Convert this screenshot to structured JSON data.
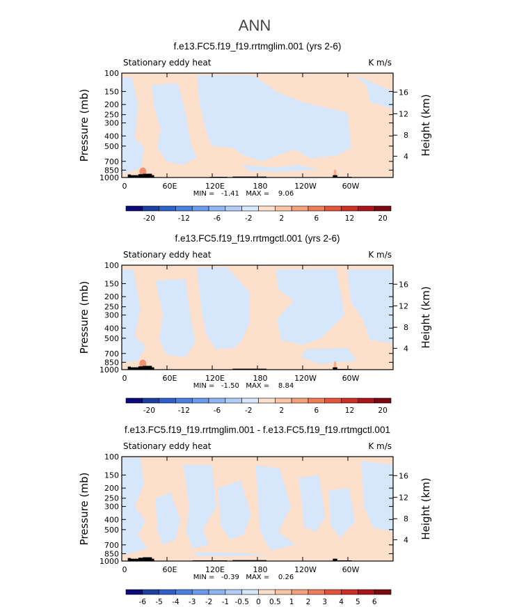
{
  "figure_title": "ANN",
  "colors": {
    "neg_light": "#d6e6fb",
    "pos_light": "#fde0cc",
    "topography": "#000000",
    "frame": "#000000"
  },
  "chart_data": [
    {
      "type": "heatmap",
      "title": "f.e13.FC5.f19_f19.rrtmglim.001 (yrs 2-6)",
      "left_label": "Stationary eddy heat",
      "right_label": "K m/s",
      "ylabel": "Pressure (mb)",
      "ylabel_right": "Height (km)",
      "y_ticks": [
        "100",
        "150",
        "200",
        "250",
        "300",
        "400",
        "500",
        "700",
        "850",
        "1000"
      ],
      "y_right_ticks": [
        "16",
        "12",
        "8",
        "4"
      ],
      "x_ticks": [
        "0",
        "60E",
        "120E",
        "180",
        "120W",
        "60W"
      ],
      "x_range": [
        0,
        360
      ],
      "y_range": [
        100,
        1000
      ],
      "stats": "MIN =   -1.41   MAX =    9.06",
      "colorbar_labels": [
        "-20",
        "-12",
        "-6",
        "-2",
        "2",
        "6",
        "12",
        "20"
      ],
      "colorbar_colors": [
        "#0a0a78",
        "#1c3fa0",
        "#2e60c8",
        "#4b7fe0",
        "#6a9bec",
        "#8fb6f2",
        "#b3cdf7",
        "#d6e6fb",
        "#fde0cc",
        "#f9c3a5",
        "#f3a07c",
        "#ec7d58",
        "#e2543b",
        "#cc2f24",
        "#a9151a",
        "#7a0a10"
      ]
    },
    {
      "type": "heatmap",
      "title": "f.e13.FC5.f19_f19.rrtmgctl.001 (yrs 2-6)",
      "left_label": "Stationary eddy heat",
      "right_label": "K m/s",
      "ylabel": "Pressure (mb)",
      "ylabel_right": "Height (km)",
      "y_ticks": [
        "100",
        "150",
        "200",
        "250",
        "300",
        "400",
        "500",
        "700",
        "850",
        "1000"
      ],
      "y_right_ticks": [
        "16",
        "12",
        "8",
        "4"
      ],
      "x_ticks": [
        "0",
        "60E",
        "120E",
        "180",
        "120W",
        "60W"
      ],
      "x_range": [
        0,
        360
      ],
      "y_range": [
        100,
        1000
      ],
      "stats": "MIN =   -1.50   MAX =    8.84",
      "colorbar_labels": [
        "-20",
        "-12",
        "-6",
        "-2",
        "2",
        "6",
        "12",
        "20"
      ],
      "colorbar_colors": [
        "#0a0a78",
        "#1c3fa0",
        "#2e60c8",
        "#4b7fe0",
        "#6a9bec",
        "#8fb6f2",
        "#b3cdf7",
        "#d6e6fb",
        "#fde0cc",
        "#f9c3a5",
        "#f3a07c",
        "#ec7d58",
        "#e2543b",
        "#cc2f24",
        "#a9151a",
        "#7a0a10"
      ]
    },
    {
      "type": "heatmap",
      "title": "f.e13.FC5.f19_f19.rrtmglim.001 - f.e13.FC5.f19_f19.rrtmgctl.001",
      "left_label": "Stationary eddy heat",
      "right_label": "K m/s",
      "ylabel": "Pressure (mb)",
      "ylabel_right": "Height (km)",
      "y_ticks": [
        "100",
        "150",
        "200",
        "250",
        "300",
        "400",
        "500",
        "700",
        "850",
        "1000"
      ],
      "y_right_ticks": [
        "16",
        "12",
        "8",
        "4"
      ],
      "x_ticks": [
        "0",
        "60E",
        "120E",
        "180",
        "120W",
        "60W"
      ],
      "x_range": [
        0,
        360
      ],
      "y_range": [
        100,
        1000
      ],
      "stats": "MIN =   -0.39   MAX =    0.26",
      "colorbar_labels": [
        "-6",
        "-5",
        "-4",
        "-3",
        "-2",
        "-1",
        "-0.5",
        "0",
        "0.5",
        "1",
        "2",
        "3",
        "4",
        "5",
        "6"
      ],
      "colorbar_colors": [
        "#0a0a78",
        "#1c3fa0",
        "#2e60c8",
        "#4b7fe0",
        "#6a9bec",
        "#8fb6f2",
        "#b3cdf7",
        "#d6e6fb",
        "#fde0cc",
        "#f9c3a5",
        "#f3a07c",
        "#ec7d58",
        "#e2543b",
        "#cc2f24",
        "#a9151a",
        "#7a0a10"
      ]
    }
  ]
}
